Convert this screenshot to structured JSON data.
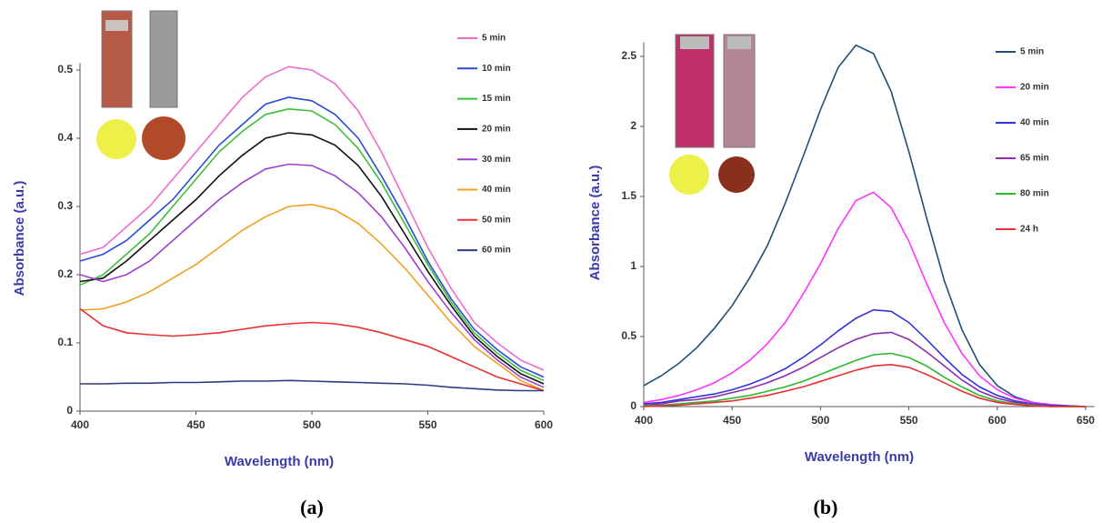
{
  "chart_data": [
    {
      "type": "line",
      "caption": "(a)",
      "x_label": "Wavelength (nm)",
      "y_label": "Absorbance (a.u.)",
      "x": [
        400,
        410,
        420,
        430,
        440,
        450,
        460,
        470,
        480,
        490,
        500,
        510,
        520,
        530,
        540,
        550,
        560,
        570,
        580,
        590,
        600
      ],
      "xlim": [
        400,
        600
      ],
      "xticks": [
        400,
        450,
        500,
        550,
        600
      ],
      "ylim": [
        0,
        0.51
      ],
      "yticks": [
        0,
        0.1,
        0.2,
        0.3,
        0.4,
        0.5
      ],
      "grid": false,
      "series": [
        {
          "name": "5 min",
          "color": "#f06bd0",
          "values": [
            0.23,
            0.24,
            0.27,
            0.3,
            0.34,
            0.38,
            0.42,
            0.46,
            0.49,
            0.505,
            0.5,
            0.48,
            0.44,
            0.38,
            0.31,
            0.24,
            0.18,
            0.13,
            0.1,
            0.075,
            0.06
          ]
        },
        {
          "name": "10 min",
          "color": "#2a4bd7",
          "values": [
            0.22,
            0.23,
            0.25,
            0.28,
            0.31,
            0.35,
            0.39,
            0.42,
            0.45,
            0.46,
            0.455,
            0.435,
            0.4,
            0.345,
            0.285,
            0.22,
            0.165,
            0.12,
            0.09,
            0.065,
            0.05
          ]
        },
        {
          "name": "15 min",
          "color": "#3cbf3c",
          "values": [
            0.185,
            0.2,
            0.23,
            0.26,
            0.3,
            0.34,
            0.38,
            0.41,
            0.435,
            0.443,
            0.44,
            0.42,
            0.385,
            0.335,
            0.275,
            0.215,
            0.16,
            0.115,
            0.085,
            0.06,
            0.045
          ]
        },
        {
          "name": "20 min",
          "color": "#111111",
          "values": [
            0.19,
            0.195,
            0.22,
            0.25,
            0.28,
            0.31,
            0.345,
            0.375,
            0.4,
            0.408,
            0.405,
            0.39,
            0.36,
            0.315,
            0.26,
            0.205,
            0.155,
            0.11,
            0.08,
            0.055,
            0.04
          ]
        },
        {
          "name": "30 min",
          "color": "#a040d0",
          "values": [
            0.2,
            0.19,
            0.2,
            0.22,
            0.25,
            0.28,
            0.31,
            0.335,
            0.355,
            0.362,
            0.36,
            0.345,
            0.32,
            0.285,
            0.24,
            0.19,
            0.145,
            0.105,
            0.075,
            0.05,
            0.035
          ]
        },
        {
          "name": "40 min",
          "color": "#f0a020",
          "values": [
            0.148,
            0.15,
            0.16,
            0.175,
            0.195,
            0.215,
            0.24,
            0.265,
            0.285,
            0.3,
            0.303,
            0.295,
            0.275,
            0.245,
            0.21,
            0.17,
            0.13,
            0.095,
            0.07,
            0.045,
            0.03
          ]
        },
        {
          "name": "50 min",
          "color": "#e83030",
          "values": [
            0.15,
            0.125,
            0.115,
            0.112,
            0.11,
            0.112,
            0.115,
            0.12,
            0.125,
            0.128,
            0.13,
            0.128,
            0.123,
            0.115,
            0.105,
            0.095,
            0.08,
            0.065,
            0.05,
            0.04,
            0.03
          ]
        },
        {
          "name": "60 min",
          "color": "#303a80",
          "values": [
            0.04,
            0.04,
            0.041,
            0.041,
            0.042,
            0.042,
            0.043,
            0.044,
            0.044,
            0.045,
            0.044,
            0.043,
            0.042,
            0.041,
            0.04,
            0.038,
            0.035,
            0.033,
            0.031,
            0.03,
            0.03
          ]
        }
      ]
    },
    {
      "type": "line",
      "caption": "(b)",
      "x_label": "Wavelength (nm)",
      "y_label": "Absorbance (a.u.)",
      "x": [
        400,
        410,
        420,
        430,
        440,
        450,
        460,
        470,
        480,
        490,
        500,
        510,
        520,
        530,
        540,
        550,
        560,
        570,
        580,
        590,
        600,
        610,
        620,
        630,
        640,
        650
      ],
      "xlim": [
        400,
        655
      ],
      "xticks": [
        400,
        450,
        500,
        550,
        600,
        650
      ],
      "ylim": [
        0,
        2.6
      ],
      "yticks": [
        0,
        0.5,
        1,
        1.5,
        2,
        2.5
      ],
      "grid": false,
      "series": [
        {
          "name": "5 min",
          "color": "#1f4e79",
          "values": [
            0.15,
            0.22,
            0.31,
            0.42,
            0.56,
            0.72,
            0.92,
            1.15,
            1.45,
            1.78,
            2.12,
            2.42,
            2.58,
            2.52,
            2.25,
            1.82,
            1.35,
            0.9,
            0.55,
            0.3,
            0.15,
            0.07,
            0.03,
            0.01,
            0.005,
            0
          ]
        },
        {
          "name": "20 min",
          "color": "#ff33ff",
          "values": [
            0.03,
            0.05,
            0.08,
            0.12,
            0.17,
            0.24,
            0.33,
            0.45,
            0.6,
            0.8,
            1.02,
            1.27,
            1.47,
            1.53,
            1.42,
            1.18,
            0.88,
            0.6,
            0.38,
            0.22,
            0.12,
            0.06,
            0.03,
            0.015,
            0.005,
            0
          ]
        },
        {
          "name": "40 min",
          "color": "#3333dd",
          "values": [
            0.02,
            0.03,
            0.05,
            0.07,
            0.09,
            0.12,
            0.16,
            0.21,
            0.27,
            0.35,
            0.44,
            0.54,
            0.63,
            0.69,
            0.68,
            0.6,
            0.48,
            0.35,
            0.23,
            0.14,
            0.08,
            0.04,
            0.02,
            0.01,
            0.005,
            0
          ]
        },
        {
          "name": "65 min",
          "color": "#8e2cb0",
          "values": [
            0.01,
            0.02,
            0.04,
            0.05,
            0.07,
            0.1,
            0.13,
            0.17,
            0.22,
            0.28,
            0.35,
            0.42,
            0.48,
            0.52,
            0.53,
            0.48,
            0.39,
            0.29,
            0.19,
            0.11,
            0.06,
            0.03,
            0.015,
            0.005,
            0,
            0
          ]
        },
        {
          "name": "80 min",
          "color": "#2db82d",
          "values": [
            0.005,
            0.01,
            0.02,
            0.03,
            0.04,
            0.06,
            0.08,
            0.11,
            0.14,
            0.18,
            0.23,
            0.28,
            0.33,
            0.37,
            0.38,
            0.35,
            0.29,
            0.21,
            0.14,
            0.08,
            0.04,
            0.02,
            0.01,
            0,
            0,
            0
          ]
        },
        {
          "name": "24 h",
          "color": "#e83030",
          "values": [
            0,
            0.005,
            0.01,
            0.02,
            0.03,
            0.04,
            0.06,
            0.08,
            0.11,
            0.14,
            0.18,
            0.22,
            0.26,
            0.29,
            0.3,
            0.28,
            0.23,
            0.17,
            0.11,
            0.06,
            0.03,
            0.015,
            0.005,
            0,
            0,
            0
          ]
        }
      ]
    }
  ]
}
